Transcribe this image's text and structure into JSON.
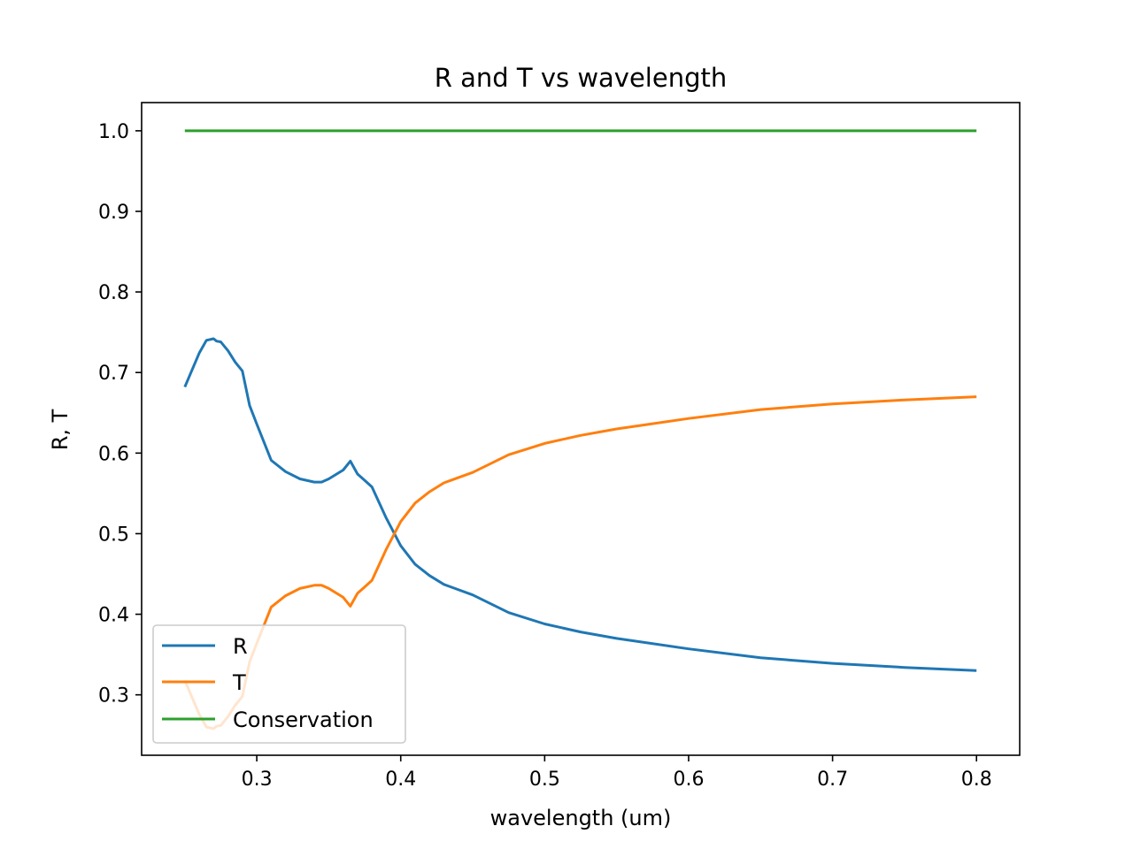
{
  "chart_data": {
    "type": "line",
    "title": "R and T vs wavelength",
    "xlabel": "wavelength (um)",
    "ylabel": "R, T",
    "xlim": [
      0.22,
      0.83
    ],
    "ylim": [
      0.225,
      1.035
    ],
    "xticks": [
      "0.3",
      "0.4",
      "0.5",
      "0.6",
      "0.7",
      "0.8"
    ],
    "yticks": [
      "0.3",
      "0.4",
      "0.5",
      "0.6",
      "0.7",
      "0.8",
      "0.9",
      "1.0"
    ],
    "grid": false,
    "legend_position": "lower-left",
    "x": [
      0.25,
      0.26,
      0.265,
      0.27,
      0.272,
      0.275,
      0.28,
      0.285,
      0.29,
      0.295,
      0.3,
      0.31,
      0.32,
      0.33,
      0.34,
      0.345,
      0.35,
      0.36,
      0.365,
      0.37,
      0.375,
      0.38,
      0.39,
      0.4,
      0.41,
      0.42,
      0.43,
      0.45,
      0.475,
      0.5,
      0.525,
      0.55,
      0.6,
      0.65,
      0.7,
      0.75,
      0.8
    ],
    "series": [
      {
        "name": "R",
        "color": "#1f77b4",
        "values": [
          0.682,
          0.724,
          0.74,
          0.742,
          0.739,
          0.738,
          0.727,
          0.713,
          0.702,
          0.659,
          0.636,
          0.591,
          0.577,
          0.568,
          0.564,
          0.564,
          0.568,
          0.579,
          0.59,
          0.574,
          0.566,
          0.558,
          0.519,
          0.485,
          0.462,
          0.448,
          0.437,
          0.424,
          0.402,
          0.388,
          0.378,
          0.37,
          0.357,
          0.346,
          0.339,
          0.334,
          0.33
        ]
      },
      {
        "name": "T",
        "color": "#ff7f0e",
        "values": [
          0.318,
          0.276,
          0.26,
          0.258,
          0.261,
          0.262,
          0.273,
          0.287,
          0.298,
          0.341,
          0.364,
          0.409,
          0.423,
          0.432,
          0.436,
          0.436,
          0.432,
          0.421,
          0.41,
          0.426,
          0.434,
          0.442,
          0.481,
          0.515,
          0.538,
          0.552,
          0.563,
          0.576,
          0.598,
          0.612,
          0.622,
          0.63,
          0.643,
          0.654,
          0.661,
          0.666,
          0.67
        ]
      },
      {
        "name": "Conservation",
        "color": "#2ca02c",
        "values": [
          1.0,
          1.0,
          1.0,
          1.0,
          1.0,
          1.0,
          1.0,
          1.0,
          1.0,
          1.0,
          1.0,
          1.0,
          1.0,
          1.0,
          1.0,
          1.0,
          1.0,
          1.0,
          1.0,
          1.0,
          1.0,
          1.0,
          1.0,
          1.0,
          1.0,
          1.0,
          1.0,
          1.0,
          1.0,
          1.0,
          1.0,
          1.0,
          1.0,
          1.0,
          1.0,
          1.0,
          1.0
        ]
      }
    ]
  }
}
